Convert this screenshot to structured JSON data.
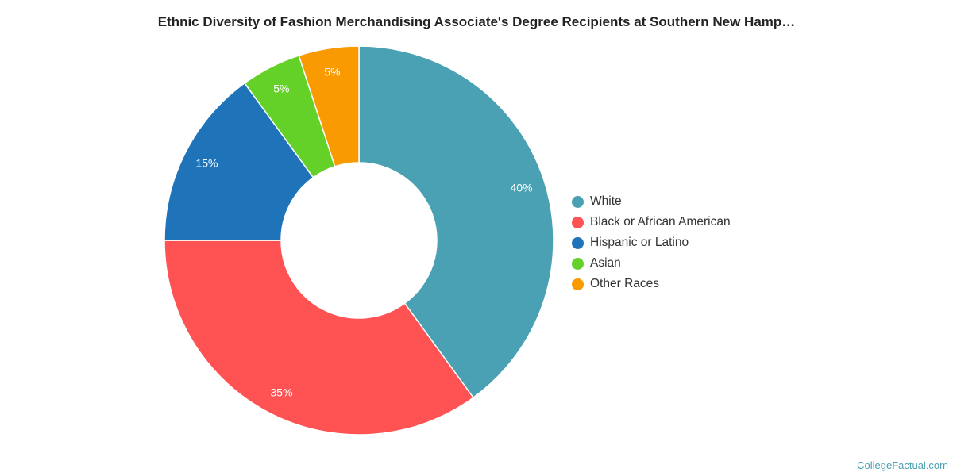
{
  "chart_data": {
    "type": "pie",
    "variant": "donut",
    "title": "Ethnic Diversity of Fashion Merchandising Associate's Degree Recipients at Southern New Hamp…",
    "categories": [
      "White",
      "Black or African American",
      "Hispanic or Latino",
      "Asian",
      "Other Races"
    ],
    "values": [
      40,
      35,
      15,
      5,
      5
    ],
    "labels": [
      "40%",
      "35%",
      "15%",
      "5%",
      "5%"
    ],
    "colors": [
      "#4aa1b3",
      "#ff5252",
      "#1f74b9",
      "#63d127",
      "#f89a00"
    ],
    "legend": "right"
  },
  "credit": "CollegeFactual.com"
}
